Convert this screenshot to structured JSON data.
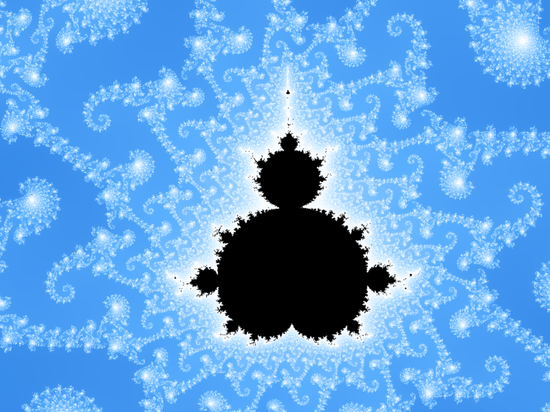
{
  "image": {
    "subject": "mandelbrot-zoom-spiral",
    "background_color": "#000000",
    "palette": [
      "#000000",
      "#02122b",
      "#0a3a7a",
      "#1f6fd1",
      "#5fb4ff",
      "#cfeaff",
      "#ffffff",
      "#ffb04a",
      "#5a1200"
    ]
  },
  "render": {
    "center_re": -0.743643887037151,
    "center_im": 0.13182590420533,
    "span_re": 1.05e-05,
    "rotation_deg": -58,
    "max_iter": 1400
  }
}
